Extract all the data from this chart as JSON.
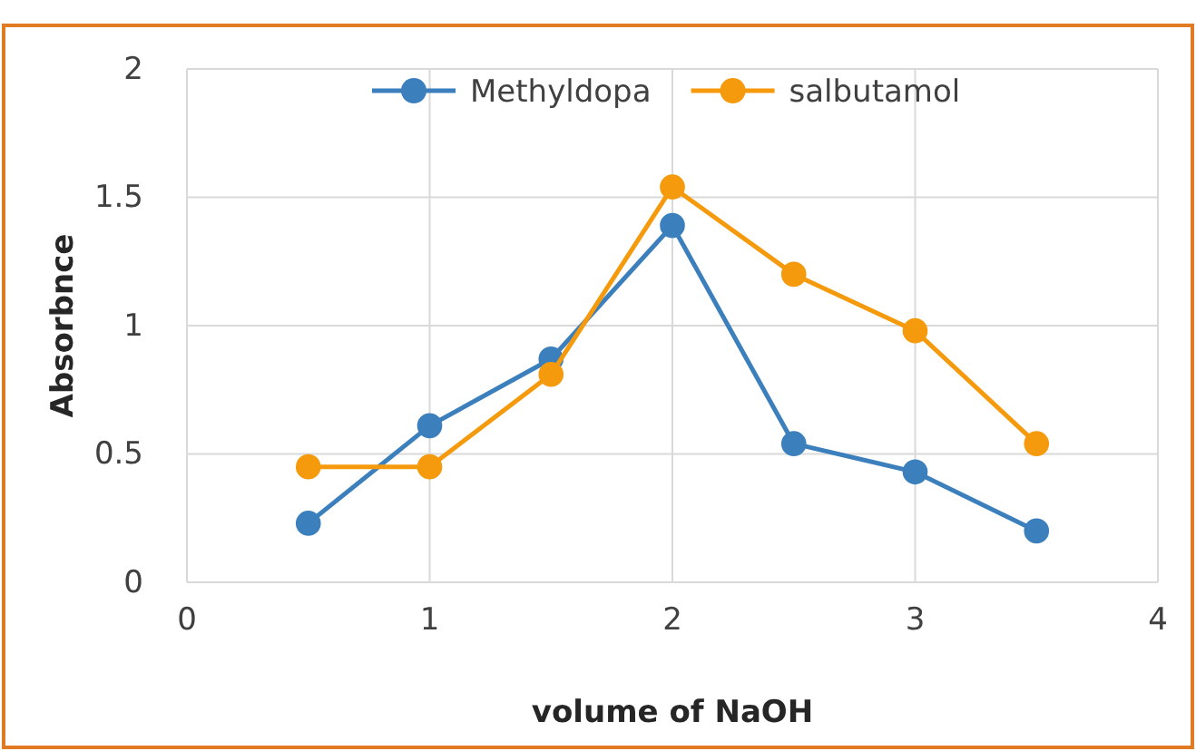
{
  "chart_data": {
    "type": "line",
    "xlabel": "volume of NaOH",
    "ylabel": "Absorbnce",
    "x": [
      0.5,
      1,
      1.5,
      2,
      2.5,
      3,
      3.5
    ],
    "series": [
      {
        "name": "Methyldopa",
        "color": "#3b7fbd",
        "values": [
          0.23,
          0.61,
          0.87,
          1.39,
          0.54,
          0.43,
          0.2
        ]
      },
      {
        "name": "salbutamol",
        "color": "#f59a0c",
        "values": [
          0.45,
          0.45,
          0.81,
          1.54,
          1.2,
          0.98,
          0.54
        ]
      }
    ],
    "xlim": [
      0,
      4
    ],
    "xticks": [
      0,
      1,
      2,
      3,
      4
    ],
    "ylim": [
      0,
      2
    ],
    "yticks": [
      0,
      0.5,
      1,
      1.5,
      2
    ],
    "grid": true,
    "legend": "top",
    "marker": "circle",
    "line_style": "solid"
  }
}
